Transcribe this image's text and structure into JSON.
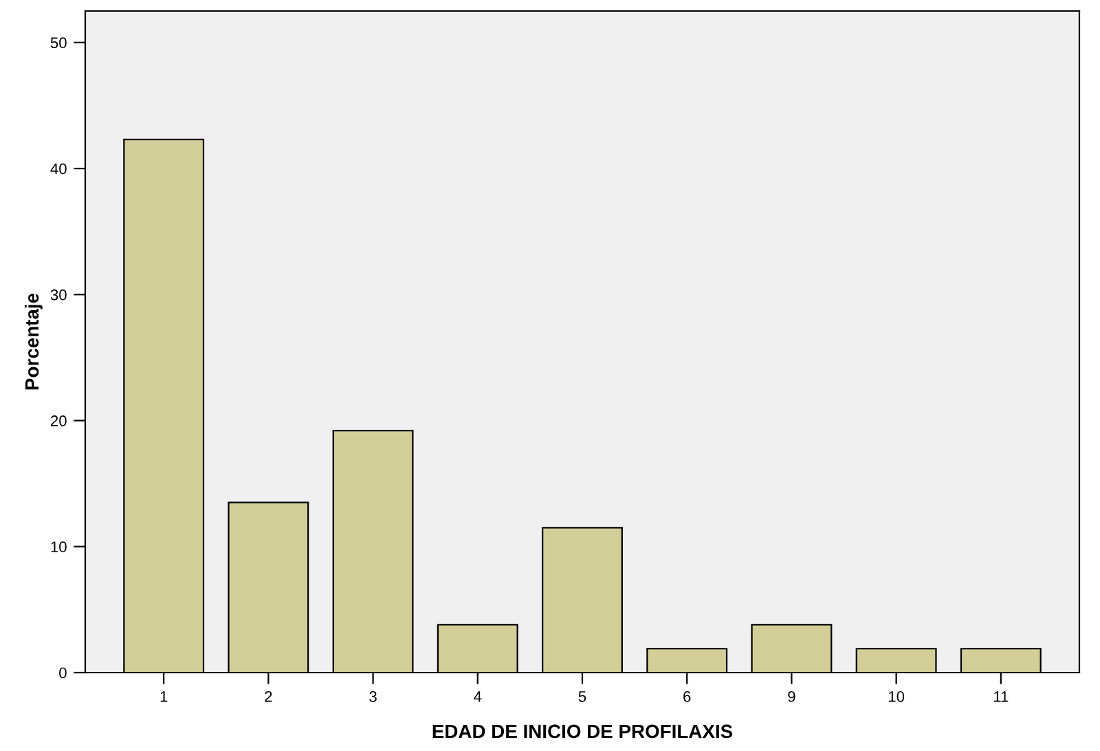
{
  "chart_data": {
    "type": "bar",
    "xlabel": "EDAD DE INICIO DE PROFILAXIS",
    "ylabel": "Porcentaje",
    "categories": [
      "1",
      "2",
      "3",
      "4",
      "5",
      "6",
      "9",
      "10",
      "11"
    ],
    "values": [
      42.3,
      13.5,
      19.2,
      3.8,
      11.5,
      1.9,
      3.8,
      1.9,
      1.9
    ],
    "color": "#d3ce97",
    "ylim": [
      0,
      52.5
    ],
    "yticks": [
      0,
      10,
      20,
      30,
      40,
      50
    ],
    "grid": false
  }
}
